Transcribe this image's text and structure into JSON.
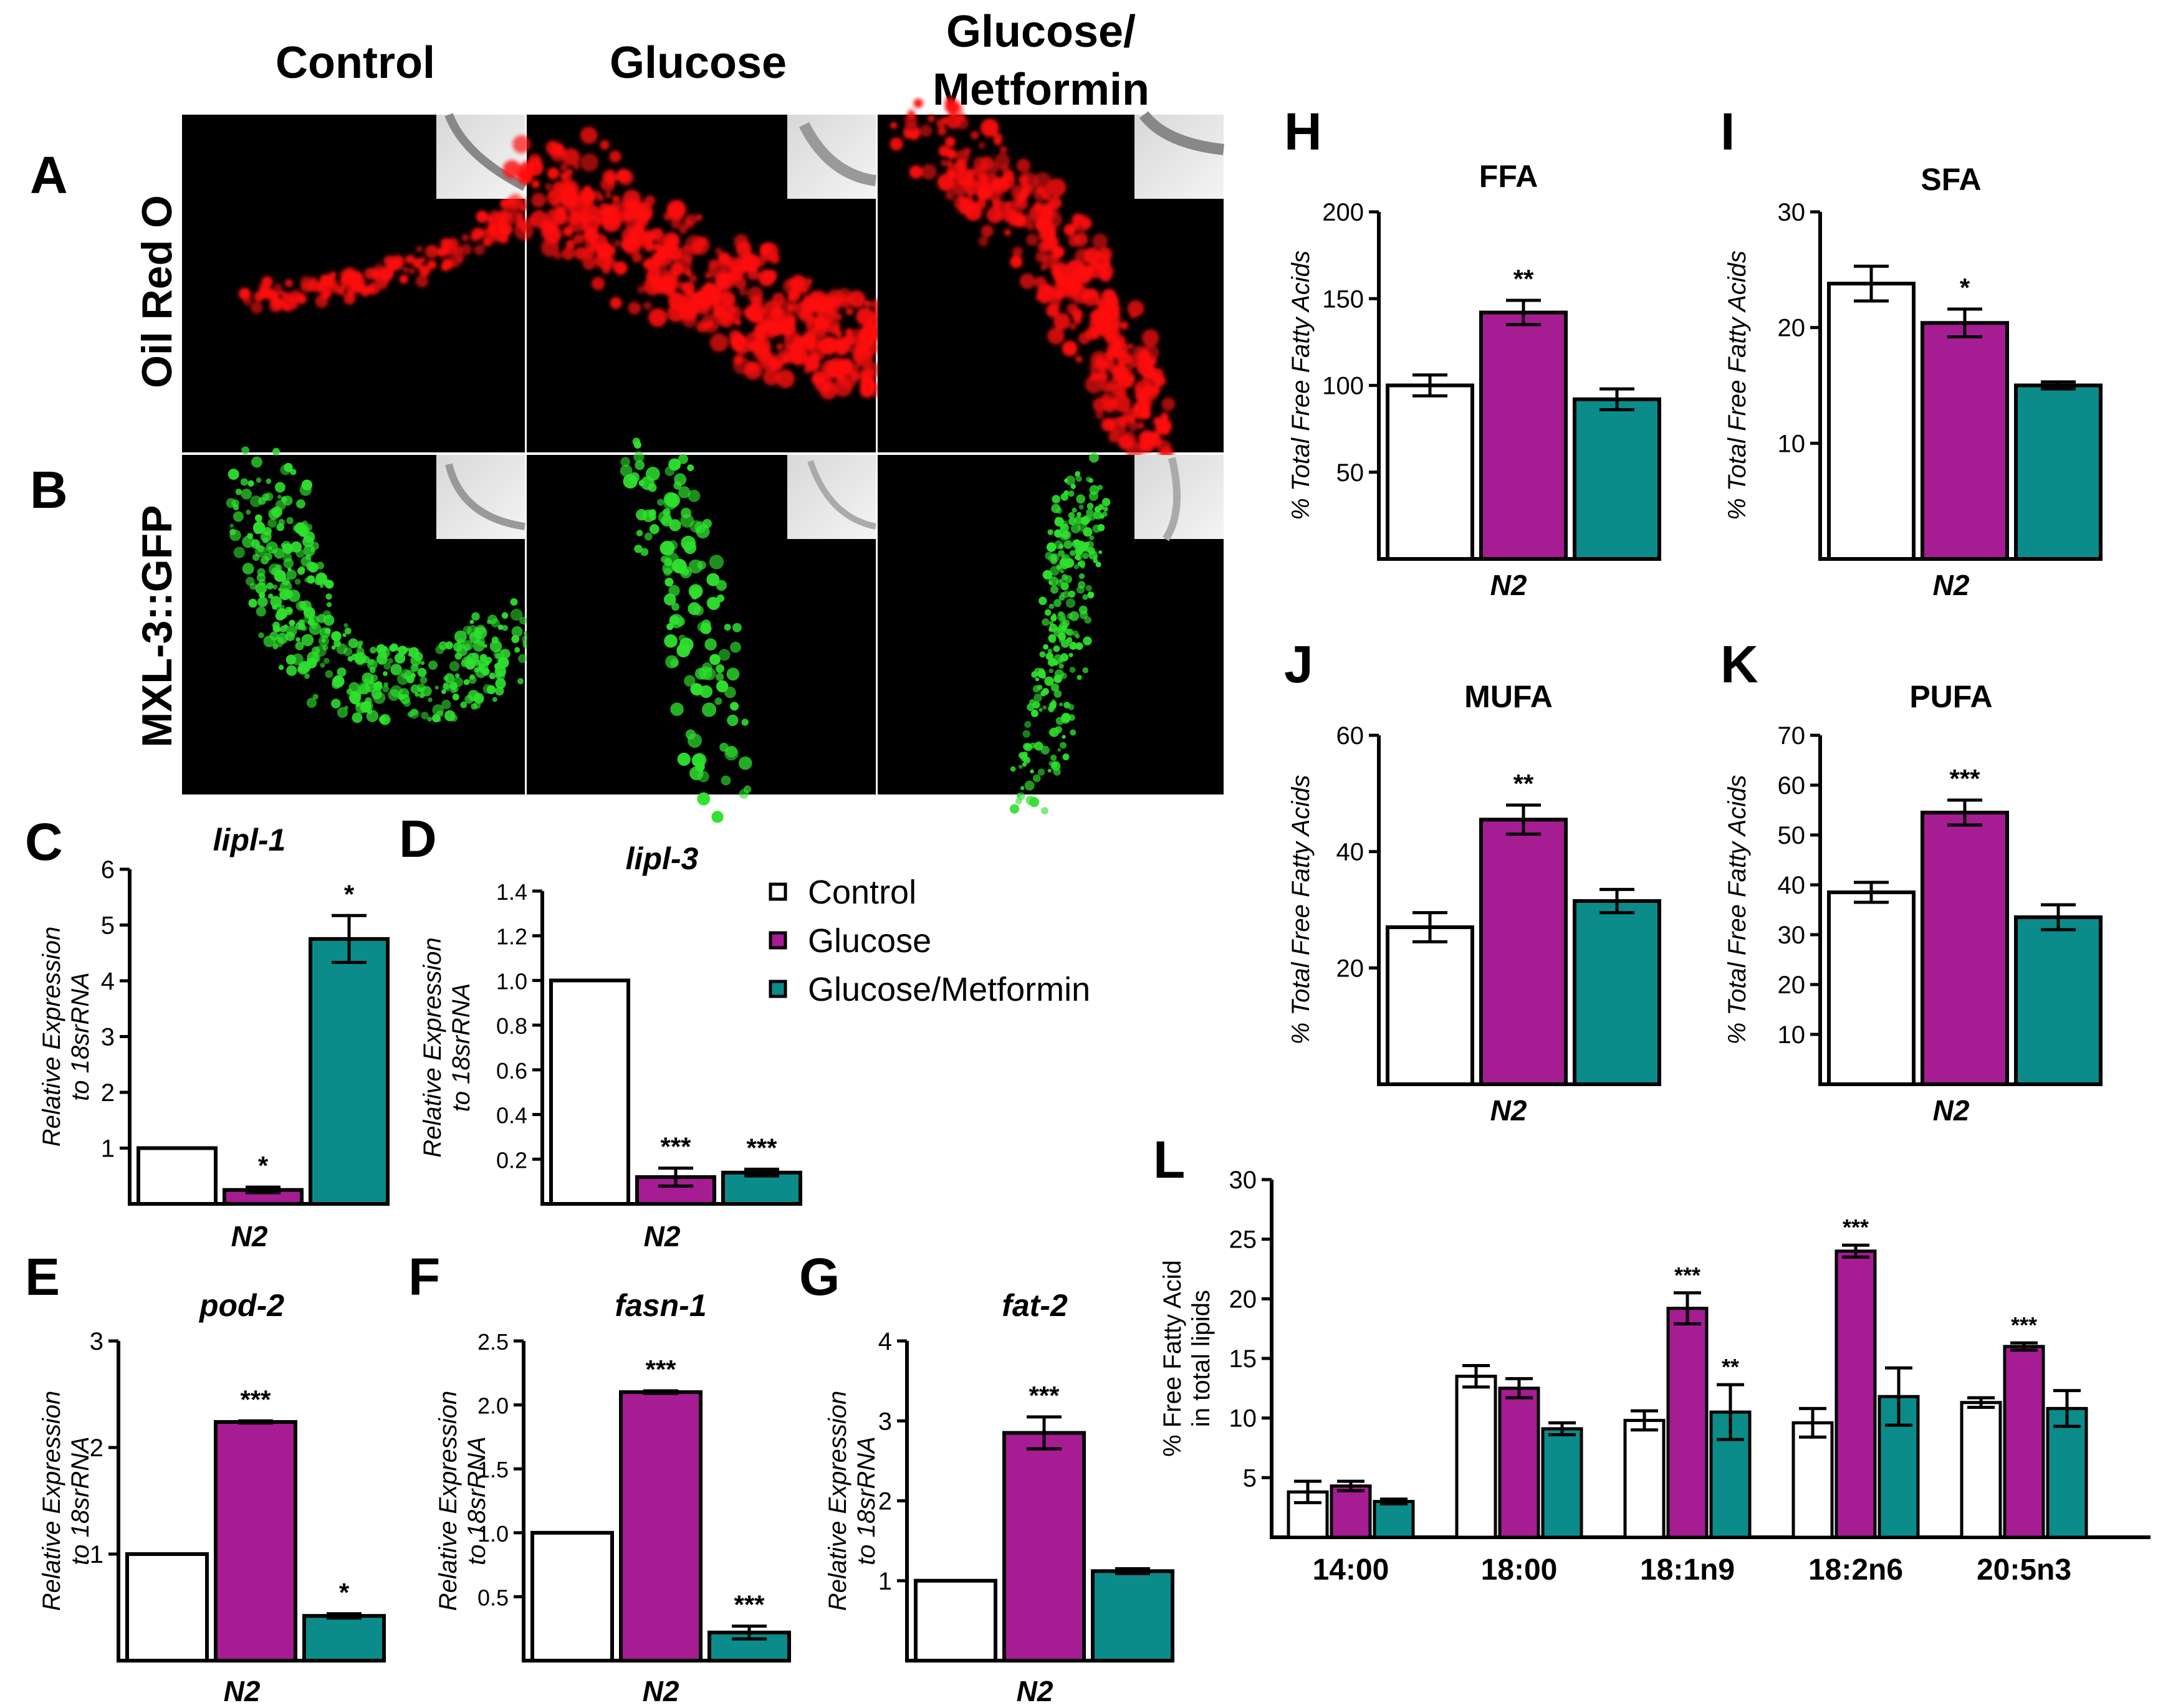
{
  "colors": {
    "control": "#ffffff",
    "glucose": "#a61c93",
    "metformin": "#0b8c8a",
    "oil_red": "#ff1010",
    "gfp": "#2fe02f"
  },
  "legend": {
    "items": [
      {
        "label": "Control",
        "color": "#ffffff"
      },
      {
        "label": "Glucose",
        "color": "#a61c93"
      },
      {
        "label": "Glucose/Metformin",
        "color": "#0b8c8a"
      }
    ]
  },
  "images": {
    "col_titles": [
      "Control",
      "Glucose",
      "Glucose/",
      "Metformin"
    ],
    "row_a_letter": "A",
    "row_a_label": "Oil Red O",
    "row_b_letter": "B",
    "row_b_label": "MXL-3::GFP"
  },
  "chart_data": [
    {
      "id": "C",
      "letter": "C",
      "type": "bar",
      "title": "lipl-1",
      "ylabel": [
        "Relative Expression",
        "to 18srRNA"
      ],
      "xlabel": "N2",
      "categories": [
        "Control",
        "Glucose",
        "Glucose/Metformin"
      ],
      "values": [
        1.0,
        0.25,
        4.75
      ],
      "errors": [
        0,
        0.05,
        0.42
      ],
      "sig": [
        "",
        "*",
        "*"
      ],
      "ylim": [
        0,
        6
      ],
      "yticks": [
        1,
        2,
        3,
        4,
        5,
        6
      ],
      "tick_labels": [
        "1",
        "2",
        "3",
        "4",
        "5",
        "6"
      ]
    },
    {
      "id": "D",
      "letter": "D",
      "type": "bar",
      "title": "lipl-3",
      "ylabel": [
        "Relative Expression",
        "to 18srRNA"
      ],
      "xlabel": "N2",
      "categories": [
        "Control",
        "Glucose",
        "Glucose/Metformin"
      ],
      "values": [
        1.0,
        0.12,
        0.14
      ],
      "errors": [
        0,
        0.04,
        0.015
      ],
      "sig": [
        "",
        "***",
        "***"
      ],
      "ylim": [
        0,
        1.4
      ],
      "yticks": [
        0.2,
        0.4,
        0.6,
        0.8,
        1.0,
        1.2,
        1.4
      ],
      "tick_labels": [
        "0.2",
        "0.4",
        "0.6",
        "0.8",
        "1.0",
        "1.2",
        "1.4"
      ]
    },
    {
      "id": "E",
      "letter": "E",
      "type": "bar",
      "title": "pod-2",
      "ylabel": [
        "Relative Expression",
        "to 18srRNA"
      ],
      "xlabel": "N2",
      "categories": [
        "Control",
        "Glucose",
        "Glucose/Metformin"
      ],
      "values": [
        1.0,
        2.24,
        0.42
      ],
      "errors": [
        0,
        0.01,
        0.02
      ],
      "sig": [
        "",
        "***",
        "*"
      ],
      "ylim": [
        0,
        3
      ],
      "yticks": [
        1,
        2,
        3
      ],
      "tick_labels": [
        "1",
        "2",
        "3"
      ]
    },
    {
      "id": "F",
      "letter": "F",
      "type": "bar",
      "title": "fasn-1",
      "ylabel": [
        "Relative Expression",
        "to 18srRNA"
      ],
      "xlabel": "N2",
      "categories": [
        "Control",
        "Glucose",
        "Glucose/Metformin"
      ],
      "values": [
        1.0,
        2.1,
        0.22
      ],
      "errors": [
        0,
        0.01,
        0.05
      ],
      "sig": [
        "",
        "***",
        "***"
      ],
      "ylim": [
        0,
        2.5
      ],
      "yticks": [
        0.5,
        1.0,
        1.5,
        2.0,
        2.5
      ],
      "tick_labels": [
        "0.5",
        "1.0",
        "1.5",
        "2.0",
        "2.5"
      ]
    },
    {
      "id": "G",
      "letter": "G",
      "type": "bar",
      "title": "fat-2",
      "ylabel": [
        "Relative Expression",
        "to 18srRNA"
      ],
      "xlabel": "N2",
      "categories": [
        "Control",
        "Glucose",
        "Glucose/Metformin"
      ],
      "values": [
        1.0,
        2.85,
        1.12
      ],
      "errors": [
        0,
        0.2,
        0.03
      ],
      "sig": [
        "",
        "***",
        ""
      ],
      "ylim": [
        0,
        4
      ],
      "yticks": [
        1,
        2,
        3,
        4
      ],
      "tick_labels": [
        "1",
        "2",
        "3",
        "4"
      ]
    },
    {
      "id": "H",
      "letter": "H",
      "type": "bar",
      "title": "FFA",
      "ylabel": [
        "% Total Free Fatty Acids"
      ],
      "xlabel": "N2",
      "categories": [
        "Control",
        "Glucose",
        "Glucose/Metformin"
      ],
      "values": [
        100,
        142,
        92
      ],
      "errors": [
        6,
        7,
        6
      ],
      "sig": [
        "",
        "**",
        ""
      ],
      "ylim": [
        0,
        200
      ],
      "yticks": [
        50,
        100,
        150,
        200
      ],
      "tick_labels": [
        "50",
        "100",
        "150",
        "200"
      ]
    },
    {
      "id": "I",
      "letter": "I",
      "type": "bar",
      "title": "SFA",
      "ylabel": [
        "% Total Free Fatty Acids"
      ],
      "xlabel": "N2",
      "categories": [
        "Control",
        "Glucose",
        "Glucose/Metformin"
      ],
      "values": [
        23.8,
        20.4,
        15.0
      ],
      "errors": [
        1.5,
        1.2,
        0.3
      ],
      "sig": [
        "",
        "*",
        ""
      ],
      "ylim": [
        0,
        30
      ],
      "yticks": [
        10,
        20,
        30
      ],
      "tick_labels": [
        "10",
        "20",
        "30"
      ]
    },
    {
      "id": "J",
      "letter": "J",
      "type": "bar",
      "title": "MUFA",
      "ylabel": [
        "% Total Free Fatty Acids"
      ],
      "xlabel": "N2",
      "categories": [
        "Control",
        "Glucose",
        "Glucose/Metformin"
      ],
      "values": [
        27,
        45.5,
        31.5
      ],
      "errors": [
        2.5,
        2.5,
        2
      ],
      "sig": [
        "",
        "**",
        ""
      ],
      "ylim": [
        0,
        60
      ],
      "yticks": [
        20,
        40,
        60
      ],
      "tick_labels": [
        "20",
        "40",
        "60"
      ]
    },
    {
      "id": "K",
      "letter": "K",
      "type": "bar",
      "title": "PUFA",
      "ylabel": [
        "% Total Free Fatty Acids"
      ],
      "xlabel": "N2",
      "categories": [
        "Control",
        "Glucose",
        "Glucose/Metformin"
      ],
      "values": [
        38.5,
        54.5,
        33.5
      ],
      "errors": [
        2,
        2.5,
        2.5
      ],
      "sig": [
        "",
        "***",
        ""
      ],
      "ylim": [
        0,
        70
      ],
      "yticks": [
        10,
        20,
        30,
        40,
        50,
        60,
        70
      ],
      "tick_labels": [
        "10",
        "20",
        "30",
        "40",
        "50",
        "60",
        "70"
      ]
    },
    {
      "id": "L",
      "letter": "L",
      "type": "bar",
      "title": "",
      "ylabel": [
        "% Free Fatty Acid",
        "in total lipids"
      ],
      "xlabel": "",
      "categories": [
        "14:00",
        "18:00",
        "18:1n9",
        "18:2n6",
        "20:5n3"
      ],
      "series": [
        {
          "name": "Control",
          "values": [
            3.8,
            13.5,
            9.8,
            9.6,
            11.3
          ],
          "errors": [
            0.9,
            0.9,
            0.8,
            1.2,
            0.4
          ],
          "sig": [
            "",
            "",
            "",
            "",
            ""
          ]
        },
        {
          "name": "Glucose",
          "values": [
            4.3,
            12.5,
            19.2,
            24.0,
            16.0
          ],
          "errors": [
            0.4,
            0.8,
            1.3,
            0.5,
            0.3
          ],
          "sig": [
            "",
            "",
            "***",
            "***",
            "***"
          ]
        },
        {
          "name": "Glucose/Metformin",
          "values": [
            3.0,
            9.1,
            10.5,
            11.8,
            10.8
          ],
          "errors": [
            0.2,
            0.5,
            2.3,
            2.4,
            1.5
          ],
          "sig": [
            "",
            "",
            "**",
            "",
            ""
          ]
        }
      ],
      "ylim": [
        0,
        30
      ],
      "yticks": [
        5,
        10,
        15,
        20,
        25,
        30
      ],
      "tick_labels": [
        "5",
        "10",
        "15",
        "20",
        "25",
        "30"
      ]
    }
  ]
}
